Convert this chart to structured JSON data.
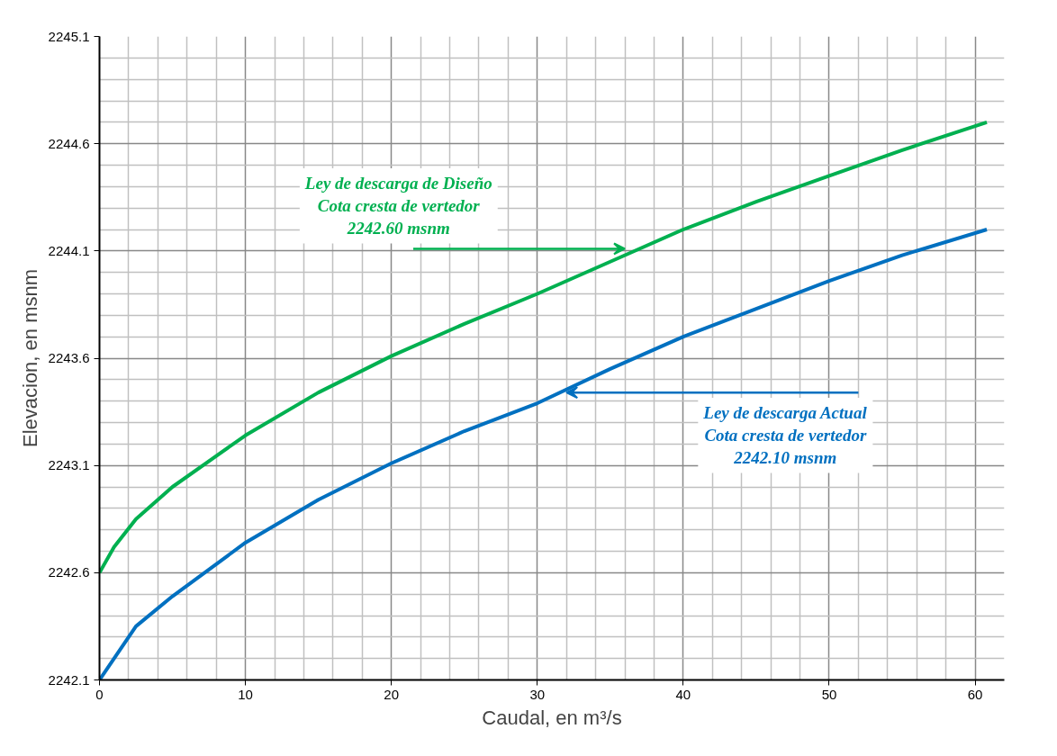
{
  "chart_data": {
    "type": "line",
    "xlabel": "Caudal, en m³/s",
    "ylabel": "Elevacion, en msnm",
    "xlim": [
      0,
      62
    ],
    "xticks": [
      0,
      10,
      20,
      30,
      40,
      50,
      60
    ],
    "ylim": [
      2242.1,
      2245.1
    ],
    "yticks": [
      2242.1,
      2242.6,
      2243.1,
      2243.6,
      2244.1,
      2244.6,
      2245.1
    ],
    "grid": true,
    "marker": "none",
    "line_style": "solid",
    "series": [
      {
        "color": "#00b050",
        "x": [
          0,
          1,
          2.5,
          5,
          10,
          15,
          20,
          25,
          30,
          35,
          40,
          45,
          50,
          55,
          60.8
        ],
        "values": [
          2242.6,
          2242.72,
          2242.85,
          2243.0,
          2243.24,
          2243.44,
          2243.61,
          2243.76,
          2243.9,
          2244.05,
          2244.2,
          2244.33,
          2244.45,
          2244.57,
          2244.7
        ]
      },
      {
        "color": "#0070c0",
        "x": [
          0,
          1,
          2.5,
          5,
          10,
          15,
          20,
          25,
          30,
          35,
          40,
          45,
          50,
          55,
          60.8
        ],
        "values": [
          2242.1,
          2242.2,
          2242.35,
          2242.49,
          2242.74,
          2242.94,
          2243.11,
          2243.26,
          2243.39,
          2243.55,
          2243.7,
          2243.83,
          2243.96,
          2244.08,
          2244.2
        ]
      }
    ],
    "annotations": [
      {
        "text": "Ley de descarga de Diseño\nCota cresta de vertedor\n2242.60 msnm",
        "x": 36,
        "y": 2244.11
      },
      {
        "text": "Ley de descarga Actual\nCota cresta de vertedor\n2242.10 msnm",
        "x": 32,
        "y": 2243.44
      }
    ]
  }
}
